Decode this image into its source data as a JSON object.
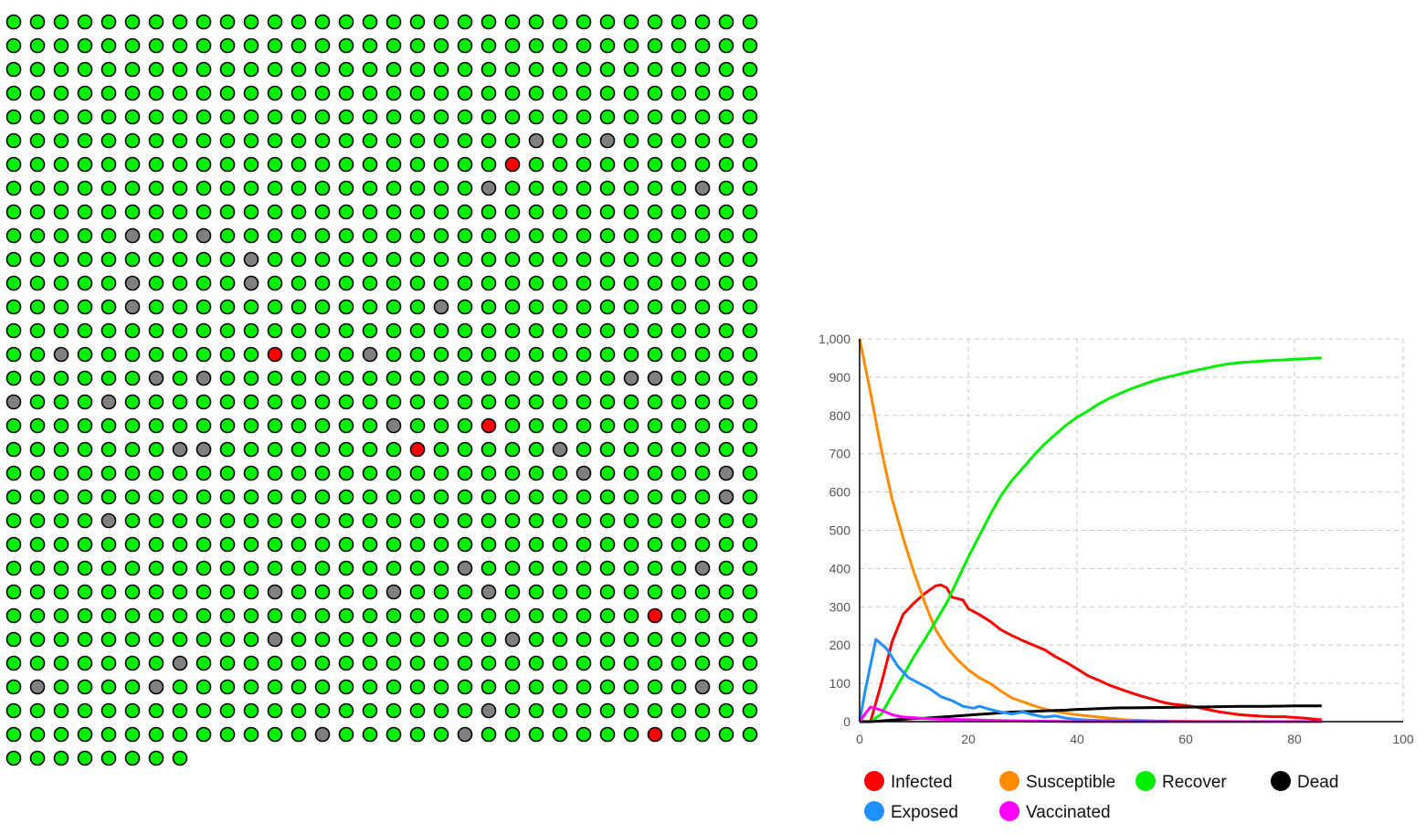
{
  "grid": {
    "total_agents": 1000,
    "columns": 32,
    "state_colors": {
      "R": "#00ee00",
      "I": "#ff0000",
      "D": "#808080"
    },
    "infected_cells": [
      [
        6,
        21
      ],
      [
        14,
        11
      ],
      [
        17,
        20
      ],
      [
        18,
        17
      ],
      [
        25,
        27
      ],
      [
        30,
        27
      ]
    ],
    "dead_cells": [
      [
        5,
        22
      ],
      [
        5,
        25
      ],
      [
        7,
        20
      ],
      [
        7,
        29
      ],
      [
        9,
        5
      ],
      [
        9,
        8
      ],
      [
        10,
        10
      ],
      [
        11,
        5
      ],
      [
        11,
        10
      ],
      [
        12,
        5
      ],
      [
        12,
        18
      ],
      [
        14,
        2
      ],
      [
        14,
        15
      ],
      [
        15,
        6
      ],
      [
        15,
        8
      ],
      [
        15,
        26
      ],
      [
        15,
        27
      ],
      [
        16,
        0
      ],
      [
        16,
        4
      ],
      [
        17,
        16
      ],
      [
        18,
        7
      ],
      [
        18,
        8
      ],
      [
        18,
        23
      ],
      [
        19,
        24
      ],
      [
        19,
        30
      ],
      [
        20,
        30
      ],
      [
        21,
        4
      ],
      [
        23,
        19
      ],
      [
        23,
        29
      ],
      [
        24,
        11
      ],
      [
        24,
        16
      ],
      [
        24,
        20
      ],
      [
        26,
        11
      ],
      [
        26,
        21
      ],
      [
        27,
        7
      ],
      [
        28,
        1
      ],
      [
        28,
        6
      ],
      [
        28,
        29
      ],
      [
        29,
        20
      ],
      [
        30,
        13
      ],
      [
        30,
        19
      ]
    ]
  },
  "chart_data": {
    "type": "line",
    "xlim": [
      0,
      100
    ],
    "ylim": [
      0,
      1000
    ],
    "x_ticks": [
      0,
      20,
      40,
      60,
      80,
      100
    ],
    "y_ticks": [
      0,
      100,
      200,
      300,
      400,
      500,
      600,
      700,
      800,
      900,
      1000
    ],
    "x_tick_labels": [
      "0",
      "20",
      "40",
      "60",
      "80",
      "100"
    ],
    "y_tick_labels": [
      "0",
      "100",
      "200",
      "300",
      "400",
      "500",
      "600",
      "700",
      "800",
      "900",
      "1,000"
    ],
    "grid": true,
    "legend_position": "bottom",
    "series": [
      {
        "name": "Infected",
        "color": "#ff0000",
        "points": [
          [
            0,
            0
          ],
          [
            2,
            0
          ],
          [
            4,
            100
          ],
          [
            6,
            210
          ],
          [
            8,
            280
          ],
          [
            10,
            310
          ],
          [
            12,
            335
          ],
          [
            14,
            355
          ],
          [
            15,
            357
          ],
          [
            16,
            350
          ],
          [
            17,
            325
          ],
          [
            19,
            318
          ],
          [
            20,
            295
          ],
          [
            22,
            280
          ],
          [
            24,
            262
          ],
          [
            26,
            240
          ],
          [
            28,
            225
          ],
          [
            30,
            212
          ],
          [
            32,
            200
          ],
          [
            34,
            188
          ],
          [
            36,
            170
          ],
          [
            38,
            155
          ],
          [
            40,
            138
          ],
          [
            42,
            120
          ],
          [
            44,
            108
          ],
          [
            46,
            95
          ],
          [
            48,
            85
          ],
          [
            50,
            75
          ],
          [
            52,
            66
          ],
          [
            54,
            58
          ],
          [
            56,
            50
          ],
          [
            58,
            45
          ],
          [
            60,
            42
          ],
          [
            62,
            38
          ],
          [
            64,
            32
          ],
          [
            66,
            26
          ],
          [
            68,
            22
          ],
          [
            70,
            18
          ],
          [
            72,
            16
          ],
          [
            74,
            14
          ],
          [
            76,
            13
          ],
          [
            78,
            13
          ],
          [
            80,
            11
          ],
          [
            82,
            9
          ],
          [
            84,
            6
          ],
          [
            85,
            5
          ]
        ]
      },
      {
        "name": "Susceptible",
        "color": "#ff8c00",
        "points": [
          [
            0,
            1000
          ],
          [
            2,
            860
          ],
          [
            4,
            710
          ],
          [
            6,
            580
          ],
          [
            8,
            480
          ],
          [
            10,
            390
          ],
          [
            12,
            310
          ],
          [
            14,
            240
          ],
          [
            16,
            195
          ],
          [
            18,
            162
          ],
          [
            20,
            135
          ],
          [
            22,
            115
          ],
          [
            24,
            100
          ],
          [
            26,
            80
          ],
          [
            28,
            62
          ],
          [
            30,
            52
          ],
          [
            32,
            42
          ],
          [
            34,
            33
          ],
          [
            36,
            27
          ],
          [
            38,
            22
          ],
          [
            40,
            18
          ],
          [
            42,
            15
          ],
          [
            44,
            12
          ],
          [
            46,
            9
          ],
          [
            48,
            6
          ],
          [
            50,
            4
          ],
          [
            55,
            2
          ],
          [
            60,
            1
          ],
          [
            70,
            0
          ],
          [
            85,
            0
          ]
        ]
      },
      {
        "name": "Recover",
        "color": "#00ee00",
        "points": [
          [
            0,
            0
          ],
          [
            2,
            0
          ],
          [
            4,
            20
          ],
          [
            6,
            70
          ],
          [
            8,
            120
          ],
          [
            10,
            170
          ],
          [
            12,
            215
          ],
          [
            14,
            262
          ],
          [
            16,
            310
          ],
          [
            18,
            370
          ],
          [
            20,
            430
          ],
          [
            22,
            485
          ],
          [
            24,
            540
          ],
          [
            26,
            590
          ],
          [
            28,
            630
          ],
          [
            30,
            662
          ],
          [
            32,
            695
          ],
          [
            34,
            725
          ],
          [
            36,
            750
          ],
          [
            38,
            775
          ],
          [
            40,
            795
          ],
          [
            42,
            812
          ],
          [
            44,
            830
          ],
          [
            46,
            845
          ],
          [
            48,
            858
          ],
          [
            50,
            870
          ],
          [
            52,
            880
          ],
          [
            54,
            890
          ],
          [
            56,
            898
          ],
          [
            58,
            905
          ],
          [
            60,
            912
          ],
          [
            62,
            918
          ],
          [
            64,
            924
          ],
          [
            66,
            930
          ],
          [
            68,
            935
          ],
          [
            70,
            938
          ],
          [
            72,
            940
          ],
          [
            74,
            942
          ],
          [
            76,
            944
          ],
          [
            78,
            945
          ],
          [
            80,
            947
          ],
          [
            82,
            948
          ],
          [
            84,
            950
          ],
          [
            85,
            950
          ]
        ]
      },
      {
        "name": "Dead",
        "color": "#000000",
        "points": [
          [
            0,
            0
          ],
          [
            2,
            0
          ],
          [
            4,
            2
          ],
          [
            6,
            4
          ],
          [
            8,
            6
          ],
          [
            10,
            8
          ],
          [
            12,
            9
          ],
          [
            14,
            11
          ],
          [
            16,
            13
          ],
          [
            18,
            15
          ],
          [
            20,
            17
          ],
          [
            22,
            19
          ],
          [
            24,
            21
          ],
          [
            26,
            23
          ],
          [
            28,
            25
          ],
          [
            30,
            26
          ],
          [
            32,
            27
          ],
          [
            34,
            28
          ],
          [
            36,
            29
          ],
          [
            38,
            30
          ],
          [
            40,
            32
          ],
          [
            42,
            33
          ],
          [
            44,
            34
          ],
          [
            46,
            35
          ],
          [
            48,
            36
          ],
          [
            50,
            36
          ],
          [
            55,
            37
          ],
          [
            60,
            38
          ],
          [
            65,
            39
          ],
          [
            70,
            40
          ],
          [
            75,
            40
          ],
          [
            80,
            41
          ],
          [
            85,
            41
          ]
        ]
      },
      {
        "name": "Exposed",
        "color": "#1e90ff",
        "points": [
          [
            0,
            0
          ],
          [
            1,
            80
          ],
          [
            3,
            215
          ],
          [
            5,
            190
          ],
          [
            7,
            145
          ],
          [
            9,
            115
          ],
          [
            11,
            100
          ],
          [
            13,
            85
          ],
          [
            15,
            65
          ],
          [
            17,
            55
          ],
          [
            19,
            40
          ],
          [
            21,
            35
          ],
          [
            22,
            40
          ],
          [
            24,
            32
          ],
          [
            26,
            25
          ],
          [
            28,
            20
          ],
          [
            30,
            25
          ],
          [
            32,
            18
          ],
          [
            34,
            12
          ],
          [
            36,
            15
          ],
          [
            38,
            9
          ],
          [
            40,
            6
          ],
          [
            42,
            4
          ],
          [
            44,
            3
          ],
          [
            48,
            2
          ],
          [
            55,
            1
          ],
          [
            60,
            0
          ],
          [
            85,
            0
          ]
        ]
      },
      {
        "name": "Vaccinated",
        "color": "#ff00ff",
        "points": [
          [
            0,
            0
          ],
          [
            1,
            20
          ],
          [
            2,
            38
          ],
          [
            4,
            30
          ],
          [
            6,
            18
          ],
          [
            8,
            12
          ],
          [
            10,
            10
          ],
          [
            12,
            8
          ],
          [
            16,
            6
          ],
          [
            20,
            5
          ],
          [
            25,
            3
          ],
          [
            30,
            2
          ],
          [
            35,
            1
          ],
          [
            40,
            0
          ],
          [
            85,
            0
          ]
        ]
      }
    ]
  },
  "legend": [
    {
      "label": "Infected",
      "color": "#ff0000"
    },
    {
      "label": "Susceptible",
      "color": "#ff8c00"
    },
    {
      "label": "Recover",
      "color": "#00ee00"
    },
    {
      "label": "Dead",
      "color": "#000000"
    },
    {
      "label": "Exposed",
      "color": "#1e90ff"
    },
    {
      "label": "Vaccinated",
      "color": "#ff00ff"
    }
  ]
}
